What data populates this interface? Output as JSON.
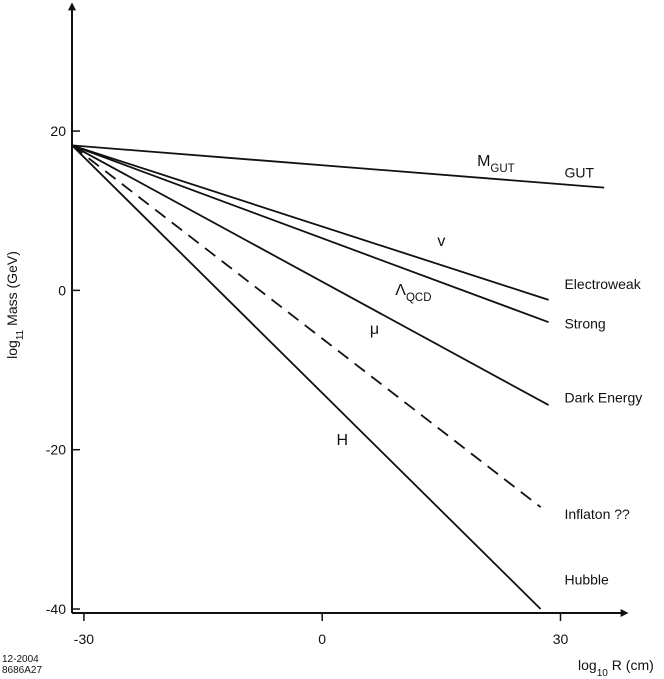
{
  "chart_data": {
    "type": "line",
    "title": "",
    "xlabel": {
      "base": "log",
      "sub": "10",
      "rest": " R (cm)"
    },
    "ylabel": {
      "base": "log",
      "sub": "11",
      "rest": " Mass (GeV)"
    },
    "xlim": [
      -31.5,
      38.5
    ],
    "ylim": [
      -40.5,
      36.2
    ],
    "xticks": [
      -30,
      0,
      30
    ],
    "xtick_labels": [
      "-30",
      "0",
      "30"
    ],
    "yticks": [
      20,
      0,
      -20,
      -40
    ],
    "ytick_labels": [
      "20",
      "0",
      "-20",
      "-40"
    ],
    "origin": {
      "x": -31.5,
      "y": 18.2
    },
    "series": [
      {
        "name": "GUT",
        "line_label": {
          "base": "M",
          "sub": "GUT"
        },
        "label_at": [
          19.5,
          15.6
        ],
        "end_label_at": [
          30.5,
          14.2
        ],
        "dashed": false,
        "x": [
          -31.5,
          35.5
        ],
        "y": [
          18.2,
          12.9
        ]
      },
      {
        "name": "Electroweak",
        "line_label": {
          "base": "v",
          "sub": ""
        },
        "label_at": [
          14.5,
          5.6
        ],
        "end_label_at": [
          30.5,
          0.2
        ],
        "dashed": false,
        "x": [
          -31.5,
          28.5
        ],
        "y": [
          18.2,
          -1.2
        ]
      },
      {
        "name": "Strong",
        "line_label": {
          "base": "Λ",
          "sub": "QCD"
        },
        "label_at": [
          9.2,
          -0.6
        ],
        "end_label_at": [
          30.5,
          -4.8
        ],
        "dashed": false,
        "x": [
          -31.5,
          28.5
        ],
        "y": [
          18.2,
          -4.0
        ]
      },
      {
        "name": "Dark Energy",
        "line_label": {
          "base": "μ",
          "sub": ""
        },
        "label_at": [
          6.0,
          -5.5
        ],
        "end_label_at": [
          30.5,
          -14.1
        ],
        "dashed": false,
        "x": [
          -31.5,
          28.5
        ],
        "y": [
          18.2,
          -14.4
        ]
      },
      {
        "name": "Inflaton ??",
        "line_label": {
          "base": "",
          "sub": ""
        },
        "label_at": [
          0,
          0
        ],
        "end_label_at": [
          30.5,
          -28.7
        ],
        "dashed": true,
        "x": [
          -31.5,
          27.5
        ],
        "y": [
          18.2,
          -27.2
        ]
      },
      {
        "name": "Hubble",
        "line_label": {
          "base": "H",
          "sub": ""
        },
        "label_at": [
          1.8,
          -19.4
        ],
        "end_label_at": [
          30.5,
          -36.9
        ],
        "dashed": false,
        "x": [
          -31.5,
          27.5
        ],
        "y": [
          18.2,
          -40.0
        ]
      }
    ]
  },
  "footnote": {
    "line1": "12-2004",
    "line2": "8686A27"
  },
  "colors": {
    "ink": "#111111",
    "background": "#ffffff"
  }
}
